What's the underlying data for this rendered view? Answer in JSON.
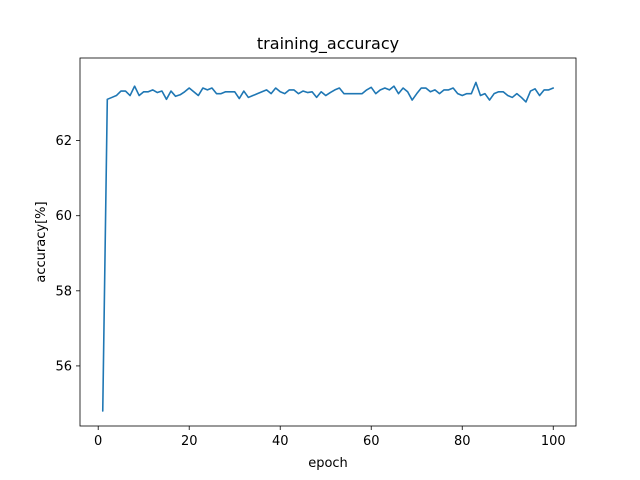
{
  "chart_data": {
    "type": "line",
    "title": "training_accuracy",
    "xlabel": "epoch",
    "ylabel": "accuracy[%]",
    "xlim": [
      -4.0,
      105.0
    ],
    "ylim": [
      54.4,
      64.2
    ],
    "xticks": [
      0,
      20,
      40,
      60,
      80,
      100
    ],
    "yticks": [
      56,
      58,
      60,
      62
    ],
    "grid": false,
    "legend": "none",
    "series": [
      {
        "color": "#1f77b4",
        "x": [
          1,
          2,
          3,
          4,
          5,
          6,
          7,
          8,
          9,
          10,
          11,
          12,
          13,
          14,
          15,
          16,
          17,
          18,
          19,
          20,
          21,
          22,
          23,
          24,
          25,
          26,
          27,
          28,
          29,
          30,
          31,
          32,
          33,
          34,
          35,
          36,
          37,
          38,
          39,
          40,
          41,
          42,
          43,
          44,
          45,
          46,
          47,
          48,
          49,
          50,
          51,
          52,
          53,
          54,
          55,
          56,
          57,
          58,
          59,
          60,
          61,
          62,
          63,
          64,
          65,
          66,
          67,
          68,
          69,
          70,
          71,
          72,
          73,
          74,
          75,
          76,
          77,
          78,
          79,
          80,
          81,
          82,
          83,
          84,
          85,
          86,
          87,
          88,
          89,
          90,
          91,
          92,
          93,
          94,
          95,
          96,
          97,
          98,
          99,
          100
        ],
        "values": [
          54.8,
          63.1,
          63.15,
          63.2,
          63.32,
          63.32,
          63.2,
          63.45,
          63.2,
          63.3,
          63.3,
          63.35,
          63.28,
          63.32,
          63.1,
          63.32,
          63.18,
          63.22,
          63.3,
          63.4,
          63.3,
          63.2,
          63.4,
          63.35,
          63.4,
          63.25,
          63.25,
          63.3,
          63.3,
          63.3,
          63.12,
          63.32,
          63.15,
          63.2,
          63.25,
          63.3,
          63.35,
          63.25,
          63.4,
          63.3,
          63.25,
          63.35,
          63.35,
          63.25,
          63.32,
          63.28,
          63.3,
          63.15,
          63.3,
          63.2,
          63.28,
          63.35,
          63.4,
          63.25,
          63.25,
          63.25,
          63.25,
          63.25,
          63.35,
          63.42,
          63.25,
          63.35,
          63.4,
          63.35,
          63.45,
          63.25,
          63.4,
          63.3,
          63.08,
          63.25,
          63.4,
          63.4,
          63.3,
          63.35,
          63.25,
          63.35,
          63.35,
          63.4,
          63.25,
          63.2,
          63.25,
          63.25,
          63.55,
          63.2,
          63.25,
          63.08,
          63.25,
          63.3,
          63.3,
          63.2,
          63.15,
          63.25,
          63.15,
          63.03,
          63.32,
          63.38,
          63.2,
          63.35,
          63.35,
          63.4
        ]
      }
    ]
  }
}
